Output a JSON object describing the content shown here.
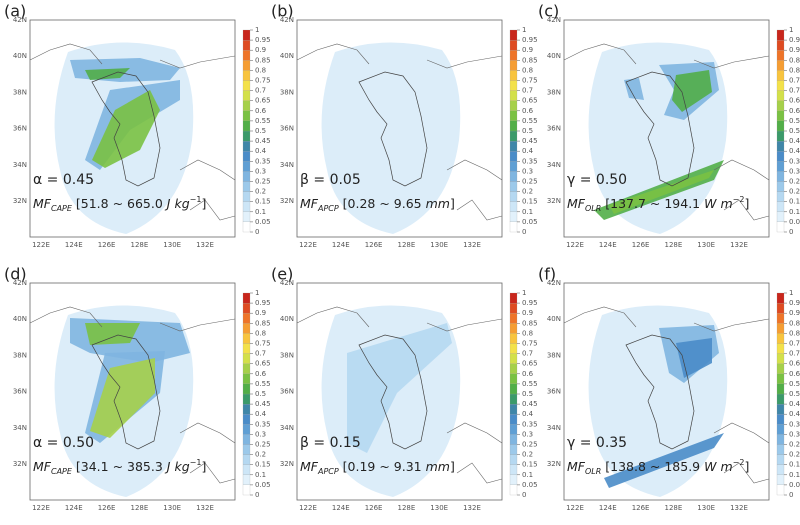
{
  "map": {
    "lat_labels": [
      "42N",
      "40N",
      "38N",
      "36N",
      "34N",
      "32N"
    ],
    "lon_labels": [
      "122E",
      "124E",
      "126E",
      "128E",
      "130E",
      "132E"
    ],
    "colorbar_ticks": [
      0,
      0.05,
      0.1,
      0.15,
      0.2,
      0.25,
      0.3,
      0.35,
      0.4,
      0.45,
      0.5,
      0.55,
      0.6,
      0.65,
      0.7,
      0.75,
      0.8,
      0.85,
      0.9,
      0.95,
      1
    ],
    "colorbar_colors": [
      "#ffffff",
      "#e2f1fb",
      "#cde6f7",
      "#b5d8f1",
      "#9cc9ea",
      "#7fb5e0",
      "#5f9fd4",
      "#4a8cc8",
      "#3f86a8",
      "#3b9a6a",
      "#52ae48",
      "#7ac143",
      "#a6d04a",
      "#d3e04a",
      "#f3e14a",
      "#f8c43e",
      "#f59d33",
      "#ee7429",
      "#de4b22",
      "#c8261c"
    ]
  },
  "panels": [
    {
      "label": "(a)",
      "param": "α = 0.45",
      "mf_parts": [
        {
          "text": "MF"
        },
        {
          "text": "CAPE",
          "style": "sub"
        },
        {
          "text": " [51.8 ~ 665.0 "
        },
        {
          "text": "J kg",
          "style": "italic"
        },
        {
          "text": "−1",
          "style": "sup"
        },
        {
          "text": "]"
        }
      ]
    },
    {
      "label": "(b)",
      "param": "β = 0.05",
      "mf_parts": [
        {
          "text": "MF"
        },
        {
          "text": "APCP",
          "style": "sub"
        },
        {
          "text": " [0.28 ~ 9.65 "
        },
        {
          "text": "mm",
          "style": "italic"
        },
        {
          "text": "]"
        }
      ]
    },
    {
      "label": "(c)",
      "param": "γ = 0.50",
      "mf_parts": [
        {
          "text": "MF"
        },
        {
          "text": "OLR",
          "style": "sub"
        },
        {
          "text": " [137.7 ~ 194.1 "
        },
        {
          "text": "W m",
          "style": "italic"
        },
        {
          "text": "−2",
          "style": "sup"
        },
        {
          "text": "]"
        }
      ]
    },
    {
      "label": "(d)",
      "param": "α = 0.50",
      "mf_parts": [
        {
          "text": "MF"
        },
        {
          "text": "CAPE",
          "style": "sub"
        },
        {
          "text": " [34.1 ~ 385.3 "
        },
        {
          "text": "J kg",
          "style": "italic"
        },
        {
          "text": "−1",
          "style": "sup"
        },
        {
          "text": "]"
        }
      ]
    },
    {
      "label": "(e)",
      "param": "β = 0.15",
      "mf_parts": [
        {
          "text": "MF"
        },
        {
          "text": "APCP",
          "style": "sub"
        },
        {
          "text": " [0.19 ~ 9.31 "
        },
        {
          "text": "mm",
          "style": "italic"
        },
        {
          "text": "]"
        }
      ]
    },
    {
      "label": "(f)",
      "param": "γ = 0.35",
      "mf_parts": [
        {
          "text": "MF"
        },
        {
          "text": "OLR",
          "style": "sub"
        },
        {
          "text": " [138.8 ~ 185.9 "
        },
        {
          "text": "W m",
          "style": "italic"
        },
        {
          "text": "−2",
          "style": "sup"
        },
        {
          "text": "]"
        }
      ]
    }
  ]
}
